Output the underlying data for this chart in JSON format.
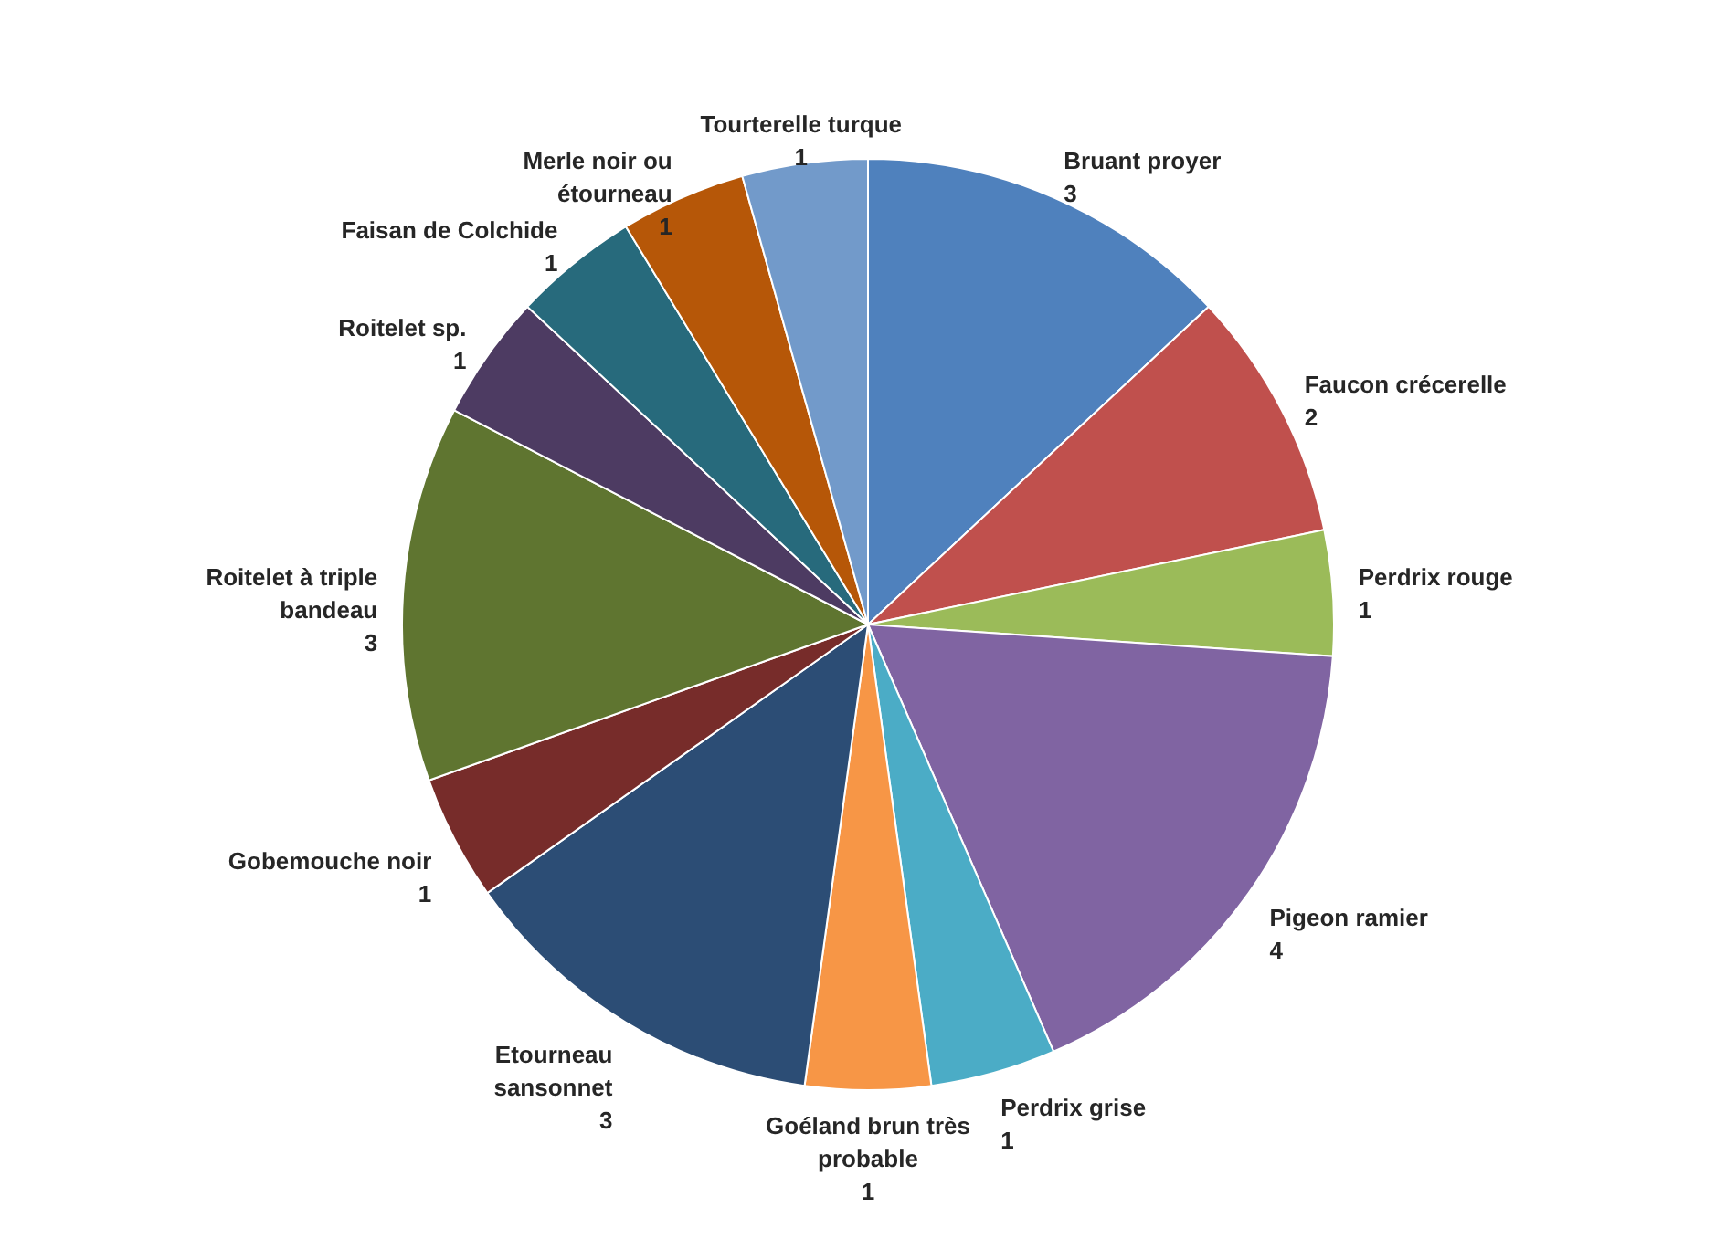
{
  "chart_data": {
    "type": "pie",
    "categories": [
      "Bruant proyer",
      "Faucon crécerelle",
      "Perdrix rouge",
      "Pigeon ramier",
      "Perdrix grise",
      "Goéland brun très probable",
      "Etourneau sansonnet",
      "Gobemouche noir",
      "Roitelet à triple bandeau",
      "Roitelet sp.",
      "Faisan de Colchide",
      "Merle noir ou étourneau",
      "Tourterelle turque"
    ],
    "values": [
      3,
      2,
      1,
      4,
      1,
      1,
      3,
      1,
      3,
      1,
      1,
      1,
      1
    ],
    "colors": [
      "#4f81bd",
      "#c0504d",
      "#9bbb59",
      "#8064a2",
      "#4bacc6",
      "#f79646",
      "#2c4d75",
      "#772c2a",
      "#5f7530",
      "#4d3b62",
      "#276a7c",
      "#b65708",
      "#729aca"
    ],
    "data_labels": true
  }
}
